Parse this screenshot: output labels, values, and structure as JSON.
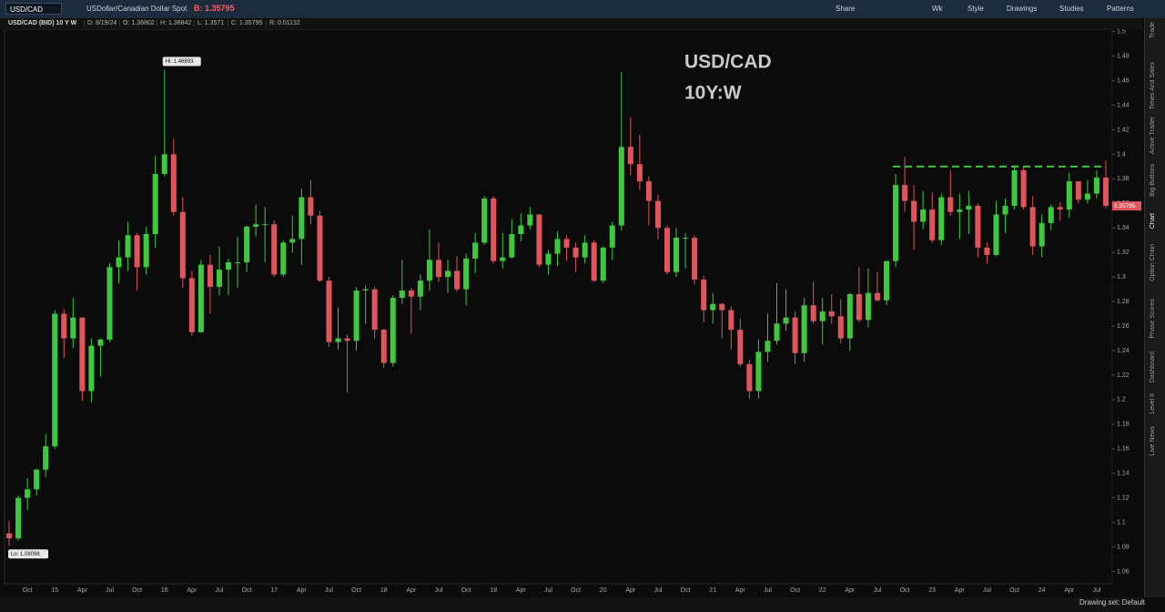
{
  "toolbar": {
    "symbol": "USD/CAD",
    "description": "USDollar/Canadian Dollar Spot",
    "bid": "B: 1.35795",
    "items": [
      "Share",
      "Wk",
      "Style",
      "Drawings",
      "Studies",
      "Patterns"
    ]
  },
  "info_bar": [
    "USD/CAD (BID) 10 Y W",
    "D: 8/19/24",
    "O: 1.36802",
    "H: 1.36842",
    "L: 1.3571",
    "C: 1.35795",
    "R: 0.01132"
  ],
  "sidebar_tabs": [
    "Trade",
    "Times And Sales",
    "Active Trader",
    "Big Buttons",
    "Chart",
    "Option Chain",
    "Phase Scores",
    "Dashboard",
    "Level II",
    "Live News"
  ],
  "status": "Drawing set: Default",
  "chart_data": {
    "type": "candlestick",
    "title": "USD/CAD",
    "subtitle": "10Y:W",
    "hi_label": "Hi: 1.46893",
    "lo_label": "Lo: 1.08098",
    "last_price": 1.35795,
    "resistance_level": 1.39,
    "up_color": "#3fc83f",
    "down_color": "#e0555c",
    "resistance_color": "#3fc83f",
    "grid": false,
    "ylim": [
      1.05,
      1.502
    ],
    "yticks": [
      1.06,
      1.08,
      1.1,
      1.12,
      1.14,
      1.16,
      1.18,
      1.2,
      1.22,
      1.24,
      1.26,
      1.28,
      1.3,
      1.32,
      1.34,
      1.36,
      1.38,
      1.4,
      1.42,
      1.44,
      1.46,
      1.48,
      1.5
    ],
    "categories": [
      null,
      null,
      "Oct",
      null,
      null,
      "15",
      null,
      null,
      "Apr",
      null,
      null,
      "Jul",
      null,
      null,
      "Oct",
      null,
      null,
      "16",
      null,
      null,
      "Apr",
      null,
      null,
      "Jul",
      null,
      null,
      "Oct",
      null,
      null,
      "17",
      null,
      null,
      "Apr",
      null,
      null,
      "Jul",
      null,
      null,
      "Oct",
      null,
      null,
      "18",
      null,
      null,
      "Apr",
      null,
      null,
      "Jul",
      null,
      null,
      "Oct",
      null,
      null,
      "19",
      null,
      null,
      "Apr",
      null,
      null,
      "Jul",
      null,
      null,
      "Oct",
      null,
      null,
      "20",
      null,
      null,
      "Apr",
      null,
      null,
      "Jul",
      null,
      null,
      "Oct",
      null,
      null,
      "21",
      null,
      null,
      "Apr",
      null,
      null,
      "Jul",
      null,
      null,
      "Oct",
      null,
      null,
      "22",
      null,
      null,
      "Apr",
      null,
      null,
      "Jul",
      null,
      null,
      "Oct",
      null,
      null,
      "23",
      null,
      null,
      "Apr",
      null,
      null,
      "Jul",
      null,
      null,
      "Oct",
      null,
      null,
      "24",
      null,
      null,
      "Apr",
      null,
      null,
      "Jul",
      null
    ],
    "open": [
      1.091,
      1.087,
      1.12,
      1.127,
      1.143,
      1.162,
      1.27,
      1.25,
      1.267,
      1.207,
      1.244,
      1.249,
      1.308,
      1.316,
      1.334,
      1.308,
      1.335,
      1.384,
      1.4,
      1.353,
      1.299,
      1.255,
      1.31,
      1.292,
      1.306,
      1.312,
      1.312,
      1.341,
      1.343,
      1.343,
      1.302,
      1.328,
      1.331,
      1.365,
      1.35,
      1.297,
      1.247,
      1.25,
      1.248,
      1.289,
      1.29,
      1.257,
      1.23,
      1.283,
      1.289,
      1.284,
      1.297,
      1.314,
      1.3,
      1.305,
      1.29,
      1.315,
      1.328,
      1.364,
      1.313,
      1.316,
      1.335,
      1.342,
      1.351,
      1.31,
      1.319,
      1.331,
      1.324,
      1.316,
      1.328,
      1.297,
      1.324,
      1.342,
      1.406,
      1.392,
      1.378,
      1.362,
      1.34,
      1.304,
      1.332,
      1.332,
      1.298,
      1.273,
      1.278,
      1.273,
      1.257,
      1.229,
      1.207,
      1.239,
      1.248,
      1.262,
      1.267,
      1.238,
      1.277,
      1.264,
      1.272,
      1.268,
      1.25,
      1.286,
      1.265,
      1.287,
      1.281,
      1.313,
      1.375,
      1.362,
      1.345,
      1.355,
      1.33,
      1.365,
      1.353,
      1.355,
      1.358,
      1.324,
      1.318,
      1.351,
      1.358,
      1.387,
      1.357,
      1.325,
      1.344,
      1.357,
      1.355,
      1.378,
      1.363,
      1.368,
      1.381
    ],
    "high": [
      1.101,
      1.122,
      1.136,
      1.144,
      1.172,
      1.273,
      1.274,
      1.283,
      1.267,
      1.25,
      1.25,
      1.311,
      1.33,
      1.345,
      1.336,
      1.341,
      1.399,
      1.469,
      1.413,
      1.365,
      1.305,
      1.314,
      1.318,
      1.325,
      1.315,
      1.333,
      1.342,
      1.359,
      1.357,
      1.346,
      1.33,
      1.35,
      1.372,
      1.379,
      1.354,
      1.3,
      1.275,
      1.253,
      1.292,
      1.293,
      1.292,
      1.258,
      1.285,
      1.314,
      1.291,
      1.302,
      1.339,
      1.328,
      1.314,
      1.317,
      1.319,
      1.336,
      1.366,
      1.366,
      1.336,
      1.347,
      1.352,
      1.357,
      1.351,
      1.322,
      1.337,
      1.334,
      1.328,
      1.334,
      1.33,
      1.325,
      1.345,
      1.467,
      1.43,
      1.416,
      1.382,
      1.367,
      1.342,
      1.34,
      1.336,
      1.334,
      1.301,
      1.287,
      1.279,
      1.276,
      1.266,
      1.232,
      1.249,
      1.27,
      1.295,
      1.29,
      1.272,
      1.283,
      1.296,
      1.283,
      1.286,
      1.282,
      1.287,
      1.308,
      1.307,
      1.304,
      1.313,
      1.384,
      1.398,
      1.375,
      1.37,
      1.369,
      1.368,
      1.387,
      1.368,
      1.37,
      1.36,
      1.328,
      1.362,
      1.364,
      1.391,
      1.39,
      1.366,
      1.351,
      1.359,
      1.361,
      1.385,
      1.378,
      1.379,
      1.387,
      1.395
    ],
    "low": [
      1.081,
      1.085,
      1.11,
      1.122,
      1.137,
      1.16,
      1.234,
      1.242,
      1.199,
      1.198,
      1.219,
      1.247,
      1.295,
      1.305,
      1.289,
      1.302,
      1.324,
      1.382,
      1.35,
      1.291,
      1.252,
      1.255,
      1.27,
      1.285,
      1.285,
      1.291,
      1.304,
      1.333,
      1.312,
      1.3,
      1.3,
      1.32,
      1.31,
      1.343,
      1.296,
      1.243,
      1.241,
      1.206,
      1.24,
      1.262,
      1.25,
      1.226,
      1.227,
      1.278,
      1.254,
      1.273,
      1.289,
      1.296,
      1.287,
      1.288,
      1.277,
      1.303,
      1.326,
      1.311,
      1.307,
      1.315,
      1.329,
      1.339,
      1.308,
      1.302,
      1.309,
      1.313,
      1.304,
      1.311,
      1.296,
      1.295,
      1.314,
      1.338,
      1.383,
      1.371,
      1.342,
      1.331,
      1.302,
      1.3,
      1.307,
      1.294,
      1.263,
      1.262,
      1.25,
      1.241,
      1.227,
      1.201,
      1.201,
      1.231,
      1.245,
      1.256,
      1.229,
      1.231,
      1.262,
      1.245,
      1.262,
      1.246,
      1.24,
      1.263,
      1.259,
      1.28,
      1.277,
      1.308,
      1.353,
      1.322,
      1.339,
      1.328,
      1.326,
      1.35,
      1.331,
      1.335,
      1.316,
      1.311,
      1.317,
      1.336,
      1.355,
      1.355,
      1.318,
      1.316,
      1.338,
      1.346,
      1.348,
      1.36,
      1.36,
      1.364,
      1.356
    ],
    "close": [
      1.087,
      1.12,
      1.127,
      1.143,
      1.162,
      1.27,
      1.25,
      1.267,
      1.207,
      1.244,
      1.249,
      1.308,
      1.316,
      1.334,
      1.308,
      1.335,
      1.384,
      1.4,
      1.353,
      1.299,
      1.255,
      1.31,
      1.292,
      1.306,
      1.312,
      1.312,
      1.341,
      1.343,
      1.343,
      1.302,
      1.328,
      1.331,
      1.365,
      1.35,
      1.297,
      1.247,
      1.25,
      1.248,
      1.289,
      1.29,
      1.257,
      1.23,
      1.283,
      1.289,
      1.284,
      1.297,
      1.314,
      1.3,
      1.305,
      1.29,
      1.315,
      1.328,
      1.364,
      1.313,
      1.316,
      1.335,
      1.342,
      1.351,
      1.31,
      1.319,
      1.331,
      1.324,
      1.316,
      1.328,
      1.297,
      1.324,
      1.342,
      1.406,
      1.392,
      1.378,
      1.362,
      1.34,
      1.304,
      1.332,
      1.332,
      1.298,
      1.273,
      1.278,
      1.273,
      1.257,
      1.229,
      1.207,
      1.239,
      1.248,
      1.262,
      1.267,
      1.238,
      1.277,
      1.264,
      1.272,
      1.268,
      1.25,
      1.286,
      1.265,
      1.287,
      1.281,
      1.313,
      1.375,
      1.362,
      1.345,
      1.355,
      1.33,
      1.365,
      1.353,
      1.355,
      1.358,
      1.324,
      1.318,
      1.351,
      1.358,
      1.387,
      1.357,
      1.325,
      1.344,
      1.357,
      1.355,
      1.378,
      1.363,
      1.368,
      1.381,
      1.358
    ]
  }
}
